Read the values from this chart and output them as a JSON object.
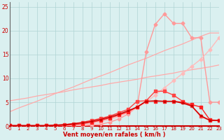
{
  "x": [
    0,
    1,
    2,
    3,
    4,
    5,
    6,
    7,
    8,
    9,
    10,
    11,
    12,
    13,
    14,
    15,
    16,
    17,
    18,
    19,
    20,
    21,
    22,
    23
  ],
  "line_straight1": [
    5.3,
    5.6,
    5.9,
    6.3,
    6.6,
    6.9,
    7.2,
    7.6,
    7.9,
    8.2,
    8.5,
    8.9,
    9.2,
    9.5,
    9.8,
    10.2,
    10.5,
    10.8,
    11.1,
    11.5,
    11.8,
    12.1,
    12.4,
    12.8
  ],
  "line_straight2": [
    3.0,
    3.8,
    4.5,
    5.2,
    6.0,
    6.8,
    7.5,
    8.2,
    9.0,
    9.8,
    10.5,
    11.2,
    12.0,
    12.8,
    13.5,
    14.2,
    15.0,
    15.8,
    16.5,
    17.2,
    18.0,
    18.8,
    19.5,
    19.5
  ],
  "line_peak": [
    0.0,
    0.0,
    0.0,
    0.0,
    0.0,
    0.0,
    0.0,
    0.0,
    0.1,
    0.2,
    0.4,
    0.8,
    1.5,
    2.5,
    4.0,
    15.5,
    21.3,
    23.5,
    21.5,
    21.5,
    18.5,
    18.5,
    5.0,
    5.0
  ],
  "line_diag1": [
    0.0,
    0.0,
    0.0,
    0.0,
    0.0,
    0.0,
    0.0,
    0.1,
    0.2,
    0.5,
    0.9,
    1.4,
    2.0,
    2.8,
    3.8,
    5.0,
    6.5,
    8.0,
    9.5,
    11.0,
    12.5,
    14.0,
    16.0,
    18.5
  ],
  "line_med1": [
    0.1,
    0.1,
    0.1,
    0.1,
    0.1,
    0.1,
    0.2,
    0.3,
    0.5,
    0.8,
    1.2,
    1.7,
    2.3,
    3.0,
    4.0,
    5.2,
    5.2,
    5.2,
    5.2,
    5.0,
    4.5,
    4.0,
    1.3,
    1.2
  ],
  "line_med2": [
    0.1,
    0.1,
    0.1,
    0.1,
    0.1,
    0.2,
    0.3,
    0.5,
    0.8,
    1.2,
    1.6,
    2.1,
    2.8,
    3.5,
    5.2,
    5.3,
    7.3,
    7.3,
    6.5,
    5.2,
    4.2,
    2.0,
    1.2,
    1.2
  ],
  "line_low": [
    0.1,
    0.1,
    0.1,
    0.1,
    0.1,
    0.2,
    0.3,
    0.5,
    0.7,
    1.0,
    1.4,
    1.9,
    2.5,
    3.2,
    4.0,
    5.2,
    5.3,
    5.2,
    5.2,
    4.8,
    4.2,
    2.2,
    1.2,
    1.2
  ],
  "xlabel": "Vent moyen/en rafales ( km/h )",
  "bg_color": "#daf0f0",
  "grid_color": "#b0d4d4",
  "text_color": "#cc0000",
  "ylim": [
    0,
    26
  ],
  "xlim": [
    0,
    23
  ],
  "yticks": [
    0,
    5,
    10,
    15,
    20,
    25
  ]
}
